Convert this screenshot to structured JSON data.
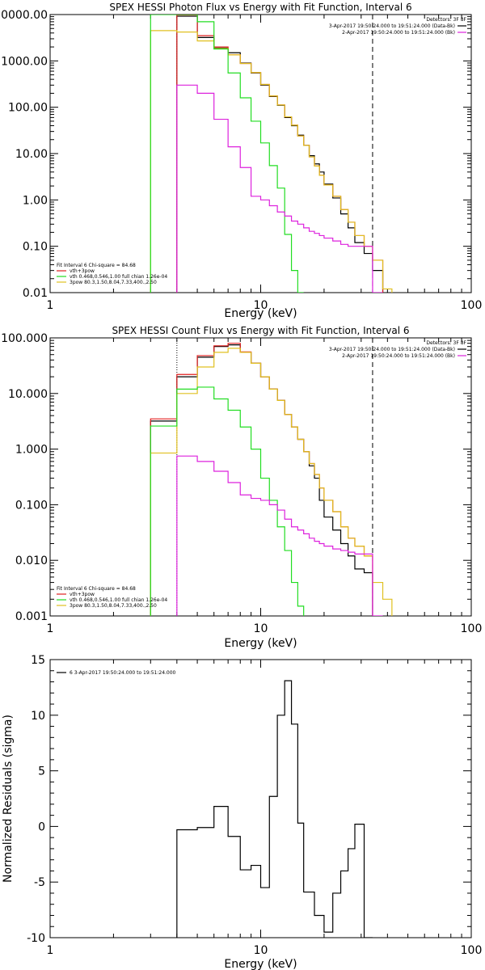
{
  "figure": {
    "panels_count": 3,
    "colors": {
      "black": "#000000",
      "red": "#e02020",
      "green": "#22dd22",
      "magenta": "#dd22dd",
      "yellow": "#e0c020"
    }
  },
  "chart_data": [
    {
      "type": "line",
      "step": true,
      "title": "SPEX HESSI Photon Flux vs Energy with Fit Function, Interval 6",
      "xlabel": "Energy (keV)",
      "ylabel": "",
      "xscale": "log",
      "yscale": "log",
      "xlim": [
        1,
        100
      ],
      "ylim": [
        0.01,
        10000
      ],
      "x_tick_labels": [
        "1",
        "10",
        "100"
      ],
      "y_tick_labels": [
        "0.01",
        "0.10",
        "1.00",
        "10.00",
        "100.00",
        "1000.00",
        "10000.00"
      ],
      "vlines": [
        {
          "x": 4.0,
          "style": "dotted"
        },
        {
          "x": 34.0,
          "style": "dashed"
        }
      ],
      "legend_right": {
        "header": "Detectors: 3F 8F",
        "entries": [
          {
            "text": "3-Apr-2017 19:50:24.000 to 19:51:24.000 (Data-Bk)",
            "color": "#000000"
          },
          {
            "text": "2-Apr-2017 19:50:24.000 to 19:51:24.000 (Bk)",
            "color": "#dd22dd"
          }
        ]
      },
      "legend_left": {
        "header": "Fit Interval 6   Chi-square = 84.68",
        "entries": [
          {
            "text": "vth+3pow",
            "color": "#e02020"
          },
          {
            "text": "vth 0.468,0.546,1.00  full chian 1.26e-04",
            "color": "#22dd22"
          },
          {
            "text": "3pow 80.3,1.50,8.04,7.33,400.,2.50",
            "color": "#e0c020"
          }
        ]
      },
      "bin_edges": [
        3,
        4,
        5,
        6,
        7,
        8,
        9,
        10,
        11,
        12,
        13,
        14,
        15,
        16,
        17,
        18,
        19,
        20,
        22,
        24,
        26,
        28,
        31,
        34,
        38,
        42
      ],
      "series": [
        {
          "color": "#000000",
          "values": [
            null,
            9200,
            3200,
            1900,
            1500,
            900,
            550,
            300,
            170,
            110,
            60,
            40,
            25,
            15,
            9,
            6,
            4,
            2.2,
            1.1,
            0.5,
            0.25,
            0.12,
            0.07,
            0.03,
            null
          ]
        },
        {
          "color": "#e02020",
          "values": [
            null,
            9800,
            3500,
            2000,
            1350,
            880,
            560,
            310,
            175,
            112,
            62,
            41,
            24,
            15,
            8.5,
            5.4,
            3.4,
            2.1,
            1.2,
            0.62,
            0.33,
            0.17,
            0.1,
            0.05,
            null
          ]
        },
        {
          "color": "#e0c020",
          "values": [
            4500,
            4200,
            2700,
            1850,
            1350,
            880,
            560,
            310,
            175,
            112,
            62,
            41,
            24,
            15,
            8.5,
            5.4,
            3.4,
            2.1,
            1.2,
            0.62,
            0.33,
            0.17,
            0.1,
            0.05,
            0.012
          ]
        },
        {
          "color": "#22dd22",
          "values": [
            10000,
            10000,
            7000,
            1800,
            550,
            160,
            50,
            17,
            5.5,
            1.8,
            0.18,
            0.03,
            0.005,
            null,
            null,
            null,
            null,
            null,
            null,
            null,
            null,
            null,
            null,
            null,
            null
          ]
        },
        {
          "color": "#dd22dd",
          "values": [
            null,
            300,
            200,
            55,
            14,
            5,
            1.2,
            1.0,
            0.75,
            0.55,
            0.45,
            0.35,
            0.3,
            0.25,
            0.21,
            0.19,
            0.17,
            0.15,
            0.13,
            0.11,
            0.1,
            0.1,
            0.1,
            0.005,
            null
          ]
        }
      ]
    },
    {
      "type": "line",
      "step": true,
      "title": "SPEX HESSI Count Flux vs Energy with Fit Function, Interval 6",
      "xlabel": "Energy (keV)",
      "ylabel": "",
      "xscale": "log",
      "yscale": "log",
      "xlim": [
        1,
        100
      ],
      "ylim": [
        0.001,
        100
      ],
      "x_tick_labels": [
        "1",
        "10",
        "100"
      ],
      "y_tick_labels": [
        "0.001",
        "0.010",
        "0.100",
        "1.000",
        "10.000",
        "100.000"
      ],
      "vlines": [
        {
          "x": 4.0,
          "style": "dotted"
        },
        {
          "x": 34.0,
          "style": "dashed"
        }
      ],
      "legend_right": {
        "header": "Detectors: 3F 8F",
        "entries": [
          {
            "text": "3-Apr-2017 19:50:24.000 to 19:51:24.000 (Data-Bk)",
            "color": "#000000"
          },
          {
            "text": "2-Apr-2017 19:50:24.000 to 19:51:24.000 (Bk)",
            "color": "#dd22dd"
          }
        ]
      },
      "legend_left": {
        "header": "Fit Interval 6   Chi-square = 84.68",
        "entries": [
          {
            "text": "vth+3pow",
            "color": "#e02020"
          },
          {
            "text": "vth 0.468,0.546,1.00  full chian 1.26e-04",
            "color": "#22dd22"
          },
          {
            "text": "3pow 80.3,1.50,8.04,7.33,400.,2.50",
            "color": "#e0c020"
          }
        ]
      },
      "bin_edges": [
        3,
        4,
        5,
        6,
        7,
        8,
        9,
        10,
        11,
        12,
        13,
        14,
        15,
        16,
        17,
        18,
        19,
        20,
        22,
        24,
        26,
        28,
        31,
        34,
        38,
        42
      ],
      "series": [
        {
          "color": "#000000",
          "values": [
            3.2,
            20,
            45,
            70,
            75,
            55,
            35,
            20,
            12,
            7.5,
            4.2,
            2.5,
            1.5,
            0.9,
            0.5,
            0.3,
            0.12,
            0.06,
            0.035,
            0.02,
            0.012,
            0.007,
            0.006,
            null,
            null
          ]
        },
        {
          "color": "#e02020",
          "values": [
            3.5,
            22,
            48,
            72,
            80,
            56,
            35,
            20,
            12,
            7.5,
            4.2,
            2.5,
            1.5,
            0.9,
            0.55,
            0.35,
            0.2,
            0.12,
            0.075,
            0.04,
            0.025,
            0.018,
            0.012,
            null,
            null
          ]
        },
        {
          "color": "#e0c020",
          "values": [
            0.85,
            10,
            30,
            55,
            65,
            55,
            35,
            20,
            12,
            7.5,
            4.2,
            2.5,
            1.5,
            0.9,
            0.55,
            0.35,
            0.2,
            0.12,
            0.075,
            0.04,
            0.025,
            0.018,
            0.012,
            0.004,
            0.002
          ]
        },
        {
          "color": "#22dd22",
          "values": [
            2.6,
            12,
            13,
            8,
            5,
            2.5,
            1,
            0.3,
            0.12,
            0.04,
            0.015,
            0.004,
            0.0015,
            null,
            null,
            null,
            null,
            null,
            null,
            null,
            null,
            null,
            null,
            null,
            null
          ]
        },
        {
          "color": "#dd22dd",
          "values": [
            null,
            0.75,
            0.6,
            0.4,
            0.25,
            0.15,
            0.13,
            0.12,
            0.1,
            0.08,
            0.055,
            0.04,
            0.035,
            0.03,
            0.025,
            0.022,
            0.02,
            0.018,
            0.016,
            0.015,
            0.014,
            0.013,
            0.013,
            0.0008,
            null
          ]
        }
      ]
    },
    {
      "type": "line",
      "step": true,
      "title": "",
      "xlabel": "Energy (keV)",
      "ylabel": "Normalized Residuals (sigma)",
      "xscale": "log",
      "yscale": "linear",
      "xlim": [
        1,
        100
      ],
      "ylim": [
        -10,
        15
      ],
      "x_tick_labels": [
        "1",
        "10",
        "100"
      ],
      "y_tick_labels": [
        "-10",
        "-5",
        "0",
        "5",
        "10",
        "15"
      ],
      "yticks": [
        -10,
        -5,
        0,
        5,
        10,
        15
      ],
      "legend": {
        "entries": [
          {
            "text": "6  3-Apr-2017 19:50:24.000 to 19:51:24.000",
            "color": "#000000"
          }
        ]
      },
      "bin_edges": [
        4,
        5,
        6,
        7,
        8,
        9,
        10,
        11,
        12,
        13,
        14,
        15,
        16,
        18,
        20,
        22,
        24,
        26,
        28,
        31,
        34
      ],
      "series": [
        {
          "color": "#000000",
          "values": [
            -0.3,
            -0.1,
            1.8,
            -0.9,
            -3.9,
            -3.5,
            -5.5,
            2.7,
            10.0,
            13.1,
            9.2,
            0.3,
            -5.9,
            -8.0,
            -9.5,
            -6.0,
            -4.0,
            -2.0,
            0.2,
            -10.0
          ]
        }
      ]
    }
  ]
}
